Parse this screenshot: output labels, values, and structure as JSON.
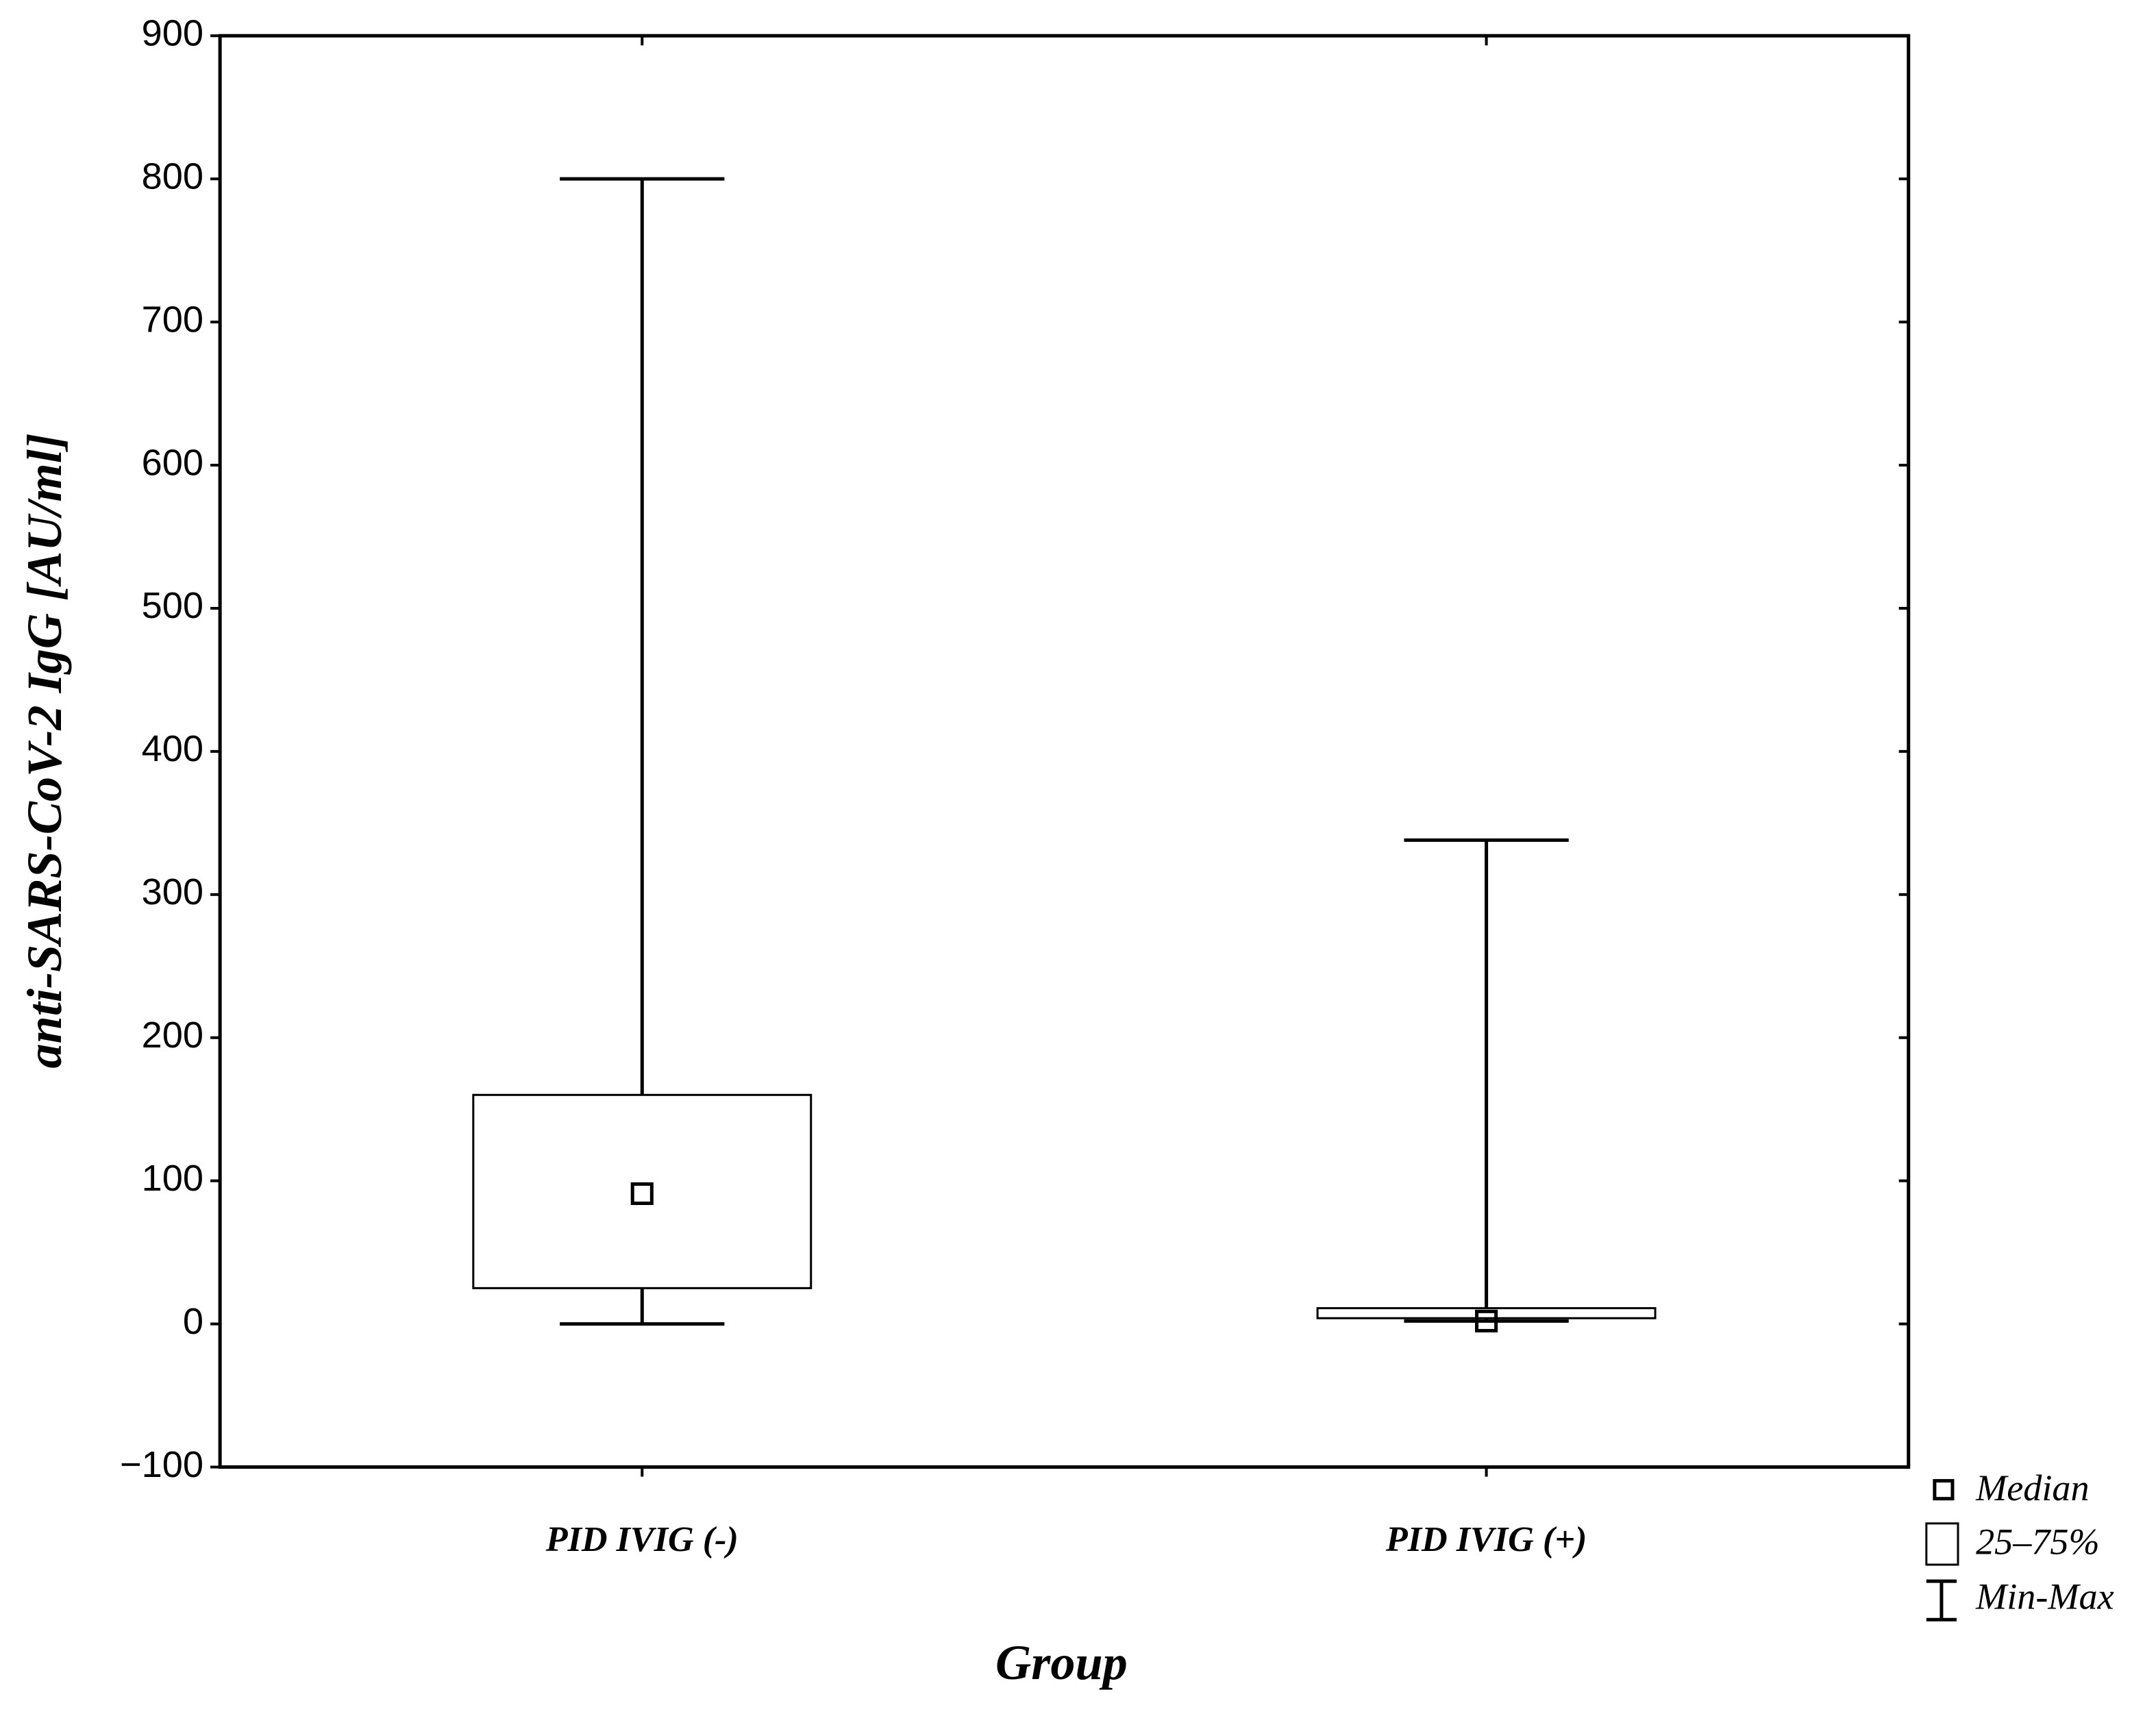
{
  "chart_data": {
    "type": "box",
    "y_label": "anti-SARS-CoV-2 IgG [AU/ml]",
    "x_label": "Group",
    "categories": [
      "PID IVIG (-)",
      "PID IVIG (+)"
    ],
    "min": [
      0,
      2
    ],
    "q1": [
      25,
      4
    ],
    "median": [
      91,
      2
    ],
    "q3": [
      160,
      11
    ],
    "max": [
      800,
      338
    ],
    "color": "#ffffff",
    "edge_color": "#000000",
    "ylim": [
      -100,
      900
    ],
    "yticks": [
      {
        "value": -100,
        "label": "−100"
      },
      0,
      100,
      200,
      300,
      400,
      500,
      600,
      700,
      800,
      900
    ],
    "legend_labels": {
      "median": "Median",
      "box": "25–75%",
      "whisker": "Min-Max"
    }
  }
}
